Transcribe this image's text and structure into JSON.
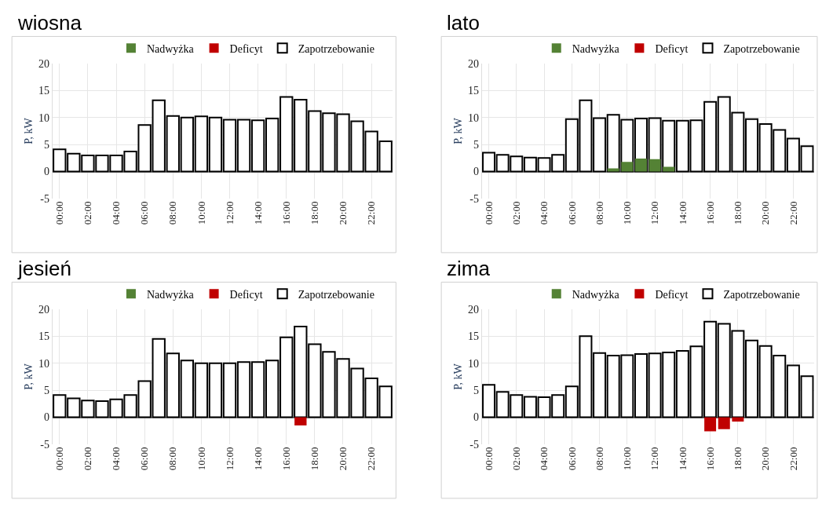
{
  "chart_data": [
    {
      "type": "bar",
      "title": "wiosna",
      "ylabel": "P, kW",
      "categories": [
        "00:00",
        null,
        "02:00",
        null,
        "04:00",
        null,
        "06:00",
        null,
        "08:00",
        null,
        "10:00",
        null,
        "12:00",
        null,
        "14:00",
        null,
        "16:00",
        null,
        "18:00",
        null,
        "20:00",
        null,
        "22:00",
        null
      ],
      "ylim": [
        -5,
        20
      ],
      "yticks": [
        -5,
        0,
        5,
        10,
        15,
        20
      ],
      "grid": true,
      "legend": "top",
      "series": [
        {
          "name": "Nadwyżka",
          "color": "#548235",
          "values": [
            null,
            null,
            null,
            null,
            null,
            null,
            null,
            null,
            null,
            null,
            null,
            null,
            null,
            null,
            null,
            null,
            null,
            null,
            null,
            null,
            null,
            null,
            null,
            null
          ]
        },
        {
          "name": "Deficyt",
          "color": "#c00000",
          "values": [
            null,
            null,
            null,
            null,
            null,
            null,
            null,
            null,
            null,
            null,
            null,
            null,
            null,
            null,
            null,
            null,
            null,
            null,
            null,
            null,
            null,
            null,
            null,
            null
          ]
        },
        {
          "name": "Zapotrzebowanie",
          "color": "#ffffff",
          "values": [
            4.1,
            3.3,
            3.0,
            3.0,
            3.0,
            3.7,
            8.6,
            13.2,
            10.3,
            10.0,
            10.2,
            10.0,
            9.6,
            9.6,
            9.5,
            9.8,
            13.8,
            13.3,
            11.2,
            10.8,
            10.6,
            9.3,
            7.4,
            5.6
          ]
        }
      ]
    },
    {
      "type": "bar",
      "title": "lato",
      "ylabel": "P, kW",
      "categories": [
        "00:00",
        null,
        "02:00",
        null,
        "04:00",
        null,
        "06:00",
        null,
        "08:00",
        null,
        "10:00",
        null,
        "12:00",
        null,
        "14:00",
        null,
        "16:00",
        null,
        "18:00",
        null,
        "20:00",
        null,
        "22:00",
        null
      ],
      "ylim": [
        -5,
        20
      ],
      "yticks": [
        -5,
        0,
        5,
        10,
        15,
        20
      ],
      "grid": true,
      "legend": "top",
      "series": [
        {
          "name": "Nadwyżka",
          "color": "#548235",
          "values": [
            null,
            null,
            null,
            null,
            null,
            null,
            null,
            null,
            null,
            0.6,
            1.8,
            2.4,
            2.3,
            0.9,
            null,
            null,
            null,
            null,
            null,
            null,
            null,
            null,
            null,
            null
          ]
        },
        {
          "name": "Deficyt",
          "color": "#c00000",
          "values": [
            null,
            null,
            null,
            null,
            null,
            null,
            null,
            null,
            null,
            null,
            null,
            null,
            null,
            null,
            null,
            null,
            null,
            null,
            null,
            null,
            null,
            null,
            null,
            null
          ]
        },
        {
          "name": "Zapotrzebowanie",
          "color": "#ffffff",
          "values": [
            3.5,
            3.1,
            2.8,
            2.6,
            2.5,
            3.1,
            9.7,
            13.2,
            9.9,
            10.5,
            9.6,
            9.8,
            9.9,
            9.4,
            9.4,
            9.5,
            12.9,
            13.8,
            10.9,
            9.7,
            8.8,
            7.7,
            6.1,
            4.7
          ]
        }
      ]
    },
    {
      "type": "bar",
      "title": "jesień",
      "ylabel": "P, kW",
      "categories": [
        "00:00",
        null,
        "02:00",
        null,
        "04:00",
        null,
        "06:00",
        null,
        "08:00",
        null,
        "10:00",
        null,
        "12:00",
        null,
        "14:00",
        null,
        "16:00",
        null,
        "18:00",
        null,
        "20:00",
        null,
        "22:00",
        null
      ],
      "ylim": [
        -5,
        20
      ],
      "yticks": [
        -5,
        0,
        5,
        10,
        15,
        20
      ],
      "grid": true,
      "legend": "top",
      "series": [
        {
          "name": "Nadwyżka",
          "color": "#548235",
          "values": [
            null,
            null,
            null,
            null,
            null,
            null,
            null,
            null,
            null,
            null,
            null,
            null,
            null,
            null,
            null,
            null,
            null,
            null,
            null,
            null,
            null,
            null,
            null,
            null
          ]
        },
        {
          "name": "Deficyt",
          "color": "#c00000",
          "values": [
            null,
            null,
            null,
            null,
            null,
            null,
            null,
            null,
            null,
            null,
            null,
            null,
            null,
            null,
            null,
            null,
            null,
            -1.5,
            null,
            null,
            null,
            null,
            null,
            null
          ]
        },
        {
          "name": "Zapotrzebowanie",
          "color": "#ffffff",
          "values": [
            4.1,
            3.5,
            3.1,
            3.0,
            3.3,
            4.1,
            6.7,
            14.5,
            11.8,
            10.5,
            10.0,
            10.0,
            10.0,
            10.2,
            10.2,
            10.5,
            14.8,
            16.8,
            13.5,
            12.1,
            10.8,
            9.0,
            7.2,
            5.7
          ]
        }
      ]
    },
    {
      "type": "bar",
      "title": "zima",
      "ylabel": "P, kW",
      "categories": [
        "00:00",
        null,
        "02:00",
        null,
        "04:00",
        null,
        "06:00",
        null,
        "08:00",
        null,
        "10:00",
        null,
        "12:00",
        null,
        "14:00",
        null,
        "16:00",
        null,
        "18:00",
        null,
        "20:00",
        null,
        "22:00",
        null
      ],
      "ylim": [
        -5,
        20
      ],
      "yticks": [
        -5,
        0,
        5,
        10,
        15,
        20
      ],
      "grid": true,
      "legend": "top",
      "series": [
        {
          "name": "Nadwyżka",
          "color": "#548235",
          "values": [
            null,
            null,
            null,
            null,
            null,
            null,
            null,
            null,
            null,
            null,
            null,
            null,
            null,
            null,
            null,
            null,
            null,
            null,
            null,
            null,
            null,
            null,
            null,
            null
          ]
        },
        {
          "name": "Deficyt",
          "color": "#c00000",
          "values": [
            null,
            null,
            null,
            null,
            null,
            null,
            null,
            null,
            null,
            null,
            null,
            null,
            null,
            null,
            null,
            null,
            -2.6,
            -2.2,
            -0.8,
            null,
            null,
            null,
            null,
            null
          ]
        },
        {
          "name": "Zapotrzebowanie",
          "color": "#ffffff",
          "values": [
            6.0,
            4.7,
            4.1,
            3.8,
            3.7,
            4.1,
            5.7,
            15.0,
            11.9,
            11.4,
            11.5,
            11.7,
            11.8,
            12.0,
            12.3,
            13.1,
            17.7,
            17.3,
            16.0,
            14.2,
            13.2,
            11.4,
            9.6,
            7.6
          ]
        }
      ]
    }
  ]
}
